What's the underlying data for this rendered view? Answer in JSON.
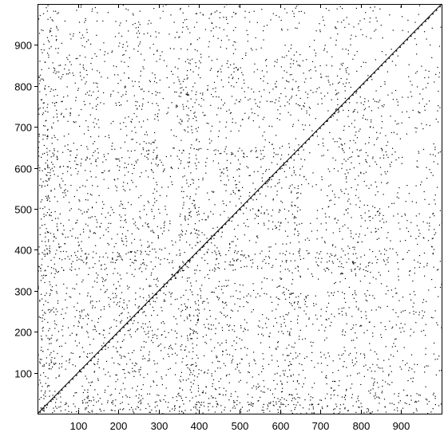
{
  "chart_data": {
    "type": "scatter",
    "title": "",
    "xlabel": "",
    "ylabel": "",
    "xlim": [
      0,
      1000
    ],
    "ylim": [
      0,
      1000
    ],
    "x_ticks": [
      100,
      200,
      300,
      400,
      500,
      600,
      700,
      800,
      900
    ],
    "y_ticks": [
      100,
      200,
      300,
      400,
      500,
      600,
      700,
      800,
      900
    ],
    "x_tick_labels": [
      "100",
      "200",
      "300",
      "400",
      "500",
      "600",
      "700",
      "800",
      "900"
    ],
    "y_tick_labels": [
      "100",
      "200",
      "300",
      "400",
      "500",
      "600",
      "700",
      "800",
      "900"
    ],
    "grid": false,
    "diagonal_line": {
      "from": [
        0,
        0
      ],
      "to": [
        1000,
        1000
      ]
    },
    "scatter_point_count_estimate": 4800,
    "point_color": "#000000"
  }
}
